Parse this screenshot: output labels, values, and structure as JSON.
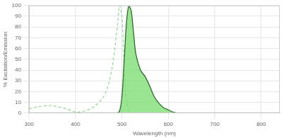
{
  "chart_data": {
    "type": "line",
    "x_label": "Wavelength (nm)",
    "y_label": "% Excitation/Emission",
    "x": [
      300,
      320,
      340,
      350,
      360,
      380,
      400,
      420,
      440,
      460,
      470,
      480,
      490,
      495,
      500,
      505,
      510,
      515,
      520,
      525,
      530,
      540,
      550,
      560,
      570,
      580,
      590,
      600,
      610,
      620,
      650,
      700,
      750,
      800,
      840
    ],
    "series": [
      {
        "color": "#8fd88f",
        "line_style": "dashed",
        "values": [
          4,
          6,
          7,
          7,
          6,
          4,
          1,
          2,
          6,
          15,
          25,
          45,
          80,
          100,
          90,
          40,
          10,
          2,
          0,
          null,
          null,
          null,
          null,
          null,
          null,
          null,
          null,
          null,
          null,
          null,
          null,
          null,
          null,
          null,
          null
        ]
      },
      {
        "color": "#2f6b2f",
        "line_style": "solid",
        "values": [
          0,
          0,
          0,
          0,
          0,
          0,
          0,
          0,
          0,
          0,
          0,
          0,
          0,
          2,
          15,
          50,
          85,
          100,
          95,
          75,
          55,
          40,
          34,
          25,
          15,
          9,
          5,
          3,
          1,
          0,
          0,
          0,
          0,
          0,
          0
        ]
      }
    ],
    "xlim": [
      300,
      840
    ],
    "xticks": [
      300,
      400,
      500,
      600,
      700,
      800
    ],
    "ylim": [
      0,
      100
    ],
    "yticks": [
      0,
      10,
      20,
      30,
      40,
      50,
      60,
      70,
      80,
      90,
      100
    ],
    "grid": true
  }
}
